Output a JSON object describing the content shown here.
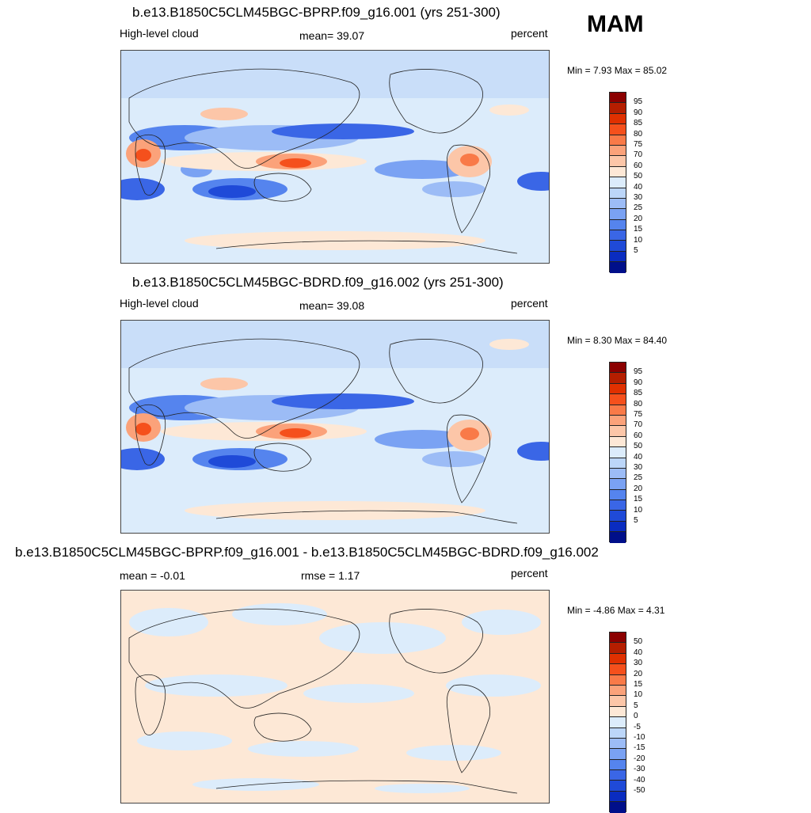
{
  "season": "MAM",
  "panels": [
    {
      "title": "b.e13.B1850C5CLM45BGC-BPRP.f09_g16.001 (yrs 251-300)",
      "left_label": "High-level cloud",
      "center_label": "mean=  39.07",
      "units": "percent",
      "minmax": "Min =   7.93 Max =  85.02"
    },
    {
      "title": "b.e13.B1850C5CLM45BGC-BDRD.f09_g16.002 (yrs 251-300)",
      "left_label": "High-level cloud",
      "center_label": "mean=  39.08",
      "units": "percent",
      "minmax": "Min =   8.30 Max =  84.40"
    },
    {
      "title": "b.e13.B1850C5CLM45BGC-BPRP.f09_g16.001 - b.e13.B1850C5CLM45BGC-BDRD.f09_g16.002",
      "left_label": "mean =  -0.01",
      "center_label": "rmse =   1.17",
      "units": "percent",
      "minmax": "Min =  -4.86 Max =   4.31"
    }
  ],
  "colorbar_main": {
    "labels": [
      "95",
      "90",
      "85",
      "80",
      "75",
      "70",
      "60",
      "50",
      "40",
      "30",
      "25",
      "20",
      "15",
      "10",
      "5"
    ],
    "colors": [
      "#8b0000",
      "#b51e00",
      "#e03000",
      "#f5501c",
      "#f97a48",
      "#fba27a",
      "#fcc6a8",
      "#fde8d6",
      "#dcecfb",
      "#bcd6f9",
      "#9cbcf6",
      "#7aa2f3",
      "#5584ee",
      "#3a66e6",
      "#1f4ad8",
      "#0a2cc0",
      "#000f8a"
    ]
  },
  "colorbar_diff": {
    "labels": [
      "50",
      "40",
      "30",
      "20",
      "15",
      "10",
      "5",
      "0",
      "-5",
      "-10",
      "-15",
      "-20",
      "-30",
      "-40",
      "-50"
    ],
    "colors": [
      "#8b0000",
      "#b51e00",
      "#e03000",
      "#f5501c",
      "#f97a48",
      "#fba27a",
      "#fcc6a8",
      "#fde8d6",
      "#dcecfb",
      "#bcd6f9",
      "#9cbcf6",
      "#7aa2f3",
      "#5584ee",
      "#3a66e6",
      "#1f4ad8",
      "#0a2cc0",
      "#000f8a"
    ]
  }
}
